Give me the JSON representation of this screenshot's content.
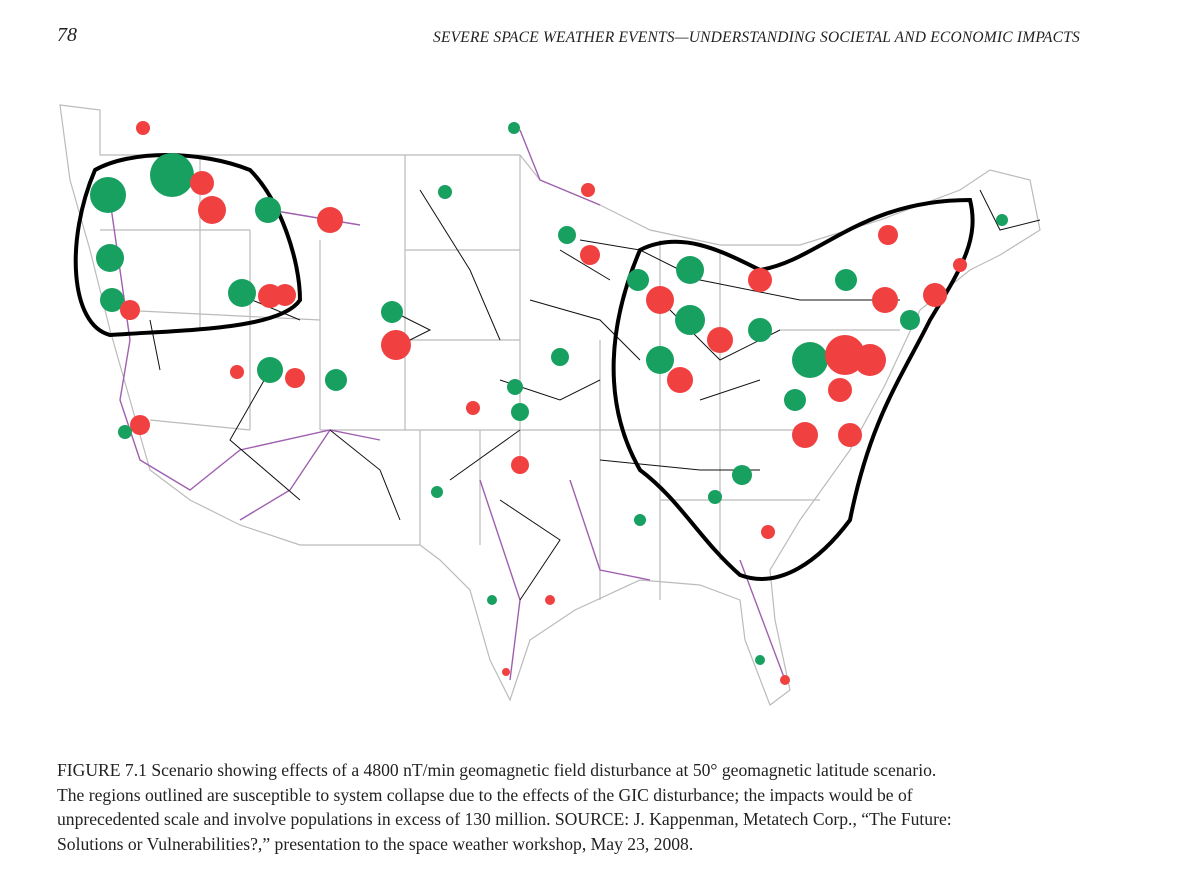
{
  "header": {
    "page_number": "78",
    "running_title": "SEVERE SPACE WEATHER EVENTS—UNDERSTANDING SOCIETAL AND ECONOMIC IMPACTS"
  },
  "figure": {
    "caption_lines": [
      "FIGURE 7.1  Scenario showing effects of a 4800 nT/min geomagnetic field disturbance at 50° geomagnetic latitude scenario.",
      "The regions outlined are susceptible to system collapse due to the effects of the GIC disturbance; the impacts would be of",
      "unprecedented scale and involve populations in excess of 130 million. SOURCE: J. Kappenman, Metatech Corp., “The Future:",
      "Solutions or Vulnerabilities?,” presentation to the space weather workshop, May 23, 2008."
    ]
  }
}
